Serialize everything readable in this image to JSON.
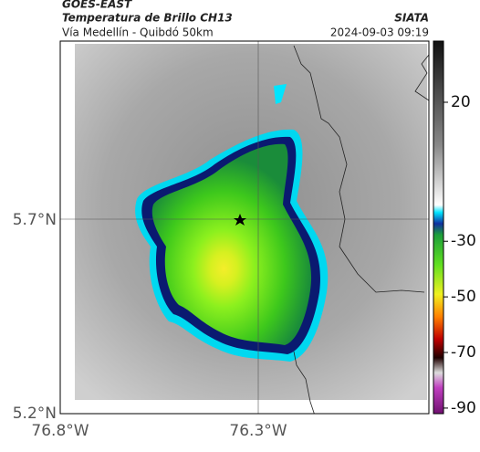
{
  "header": {
    "title": "GOES-EAST",
    "subtitle": "Temperatura de Brillo CH13",
    "region": "Vía Medellín - Quibdó 50km",
    "source": "SIATA",
    "timestamp": "2024-09-03 09:19"
  },
  "map": {
    "lat_labels": [
      "5.7°N",
      "5.2°N"
    ],
    "lon_labels": [
      "76.8°W",
      "76.3°W"
    ]
  },
  "colorbar": {
    "limits": [
      42,
      -92
    ],
    "ticks": [
      20,
      -30,
      -50,
      -70,
      -90
    ]
  }
}
